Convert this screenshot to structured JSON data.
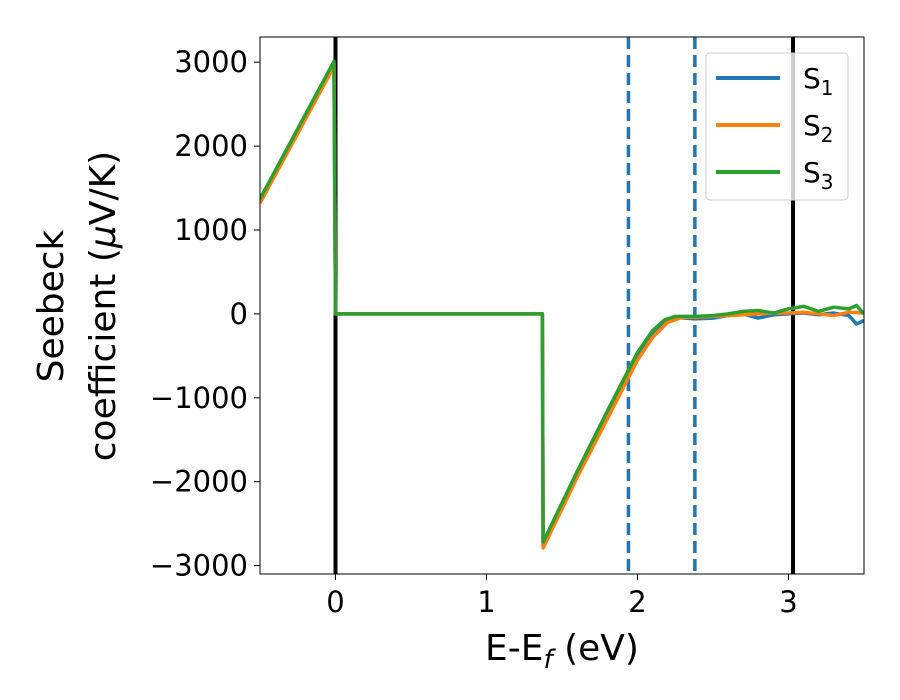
{
  "chart_data": {
    "type": "line",
    "xlabel": "E-E",
    "xlabel_sub": "f",
    "xlabel_unit": " (eV)",
    "ylabel_line1": "Seebeck",
    "ylabel_line2": "coefficient  (",
    "ylabel_mu": "μ",
    "ylabel_unit": "V/K)",
    "xlim": [
      -0.5,
      3.5
    ],
    "ylim": [
      -3100,
      3300
    ],
    "xticks": [
      0,
      1,
      2,
      3
    ],
    "xtick_labels": [
      "0",
      "1",
      "2",
      "3"
    ],
    "yticks": [
      3000,
      2000,
      1000,
      0,
      -1000,
      -2000,
      -3000
    ],
    "ytick_labels": [
      "3000",
      "2000",
      "1000",
      "0",
      "−1000",
      "−2000",
      "−3000"
    ],
    "grid": false,
    "legend_position": "top-right",
    "vertical_lines": [
      {
        "x": 0.0,
        "style": "solid",
        "color": "#000000"
      },
      {
        "x": 3.03,
        "style": "solid",
        "color": "#000000"
      },
      {
        "x": 1.94,
        "style": "dashed",
        "color": "#1f77b4"
      },
      {
        "x": 2.38,
        "style": "dashed",
        "color": "#1f77b4"
      }
    ],
    "series": [
      {
        "name": "S",
        "subscript": "1",
        "color": "#1f77b4",
        "x": [
          -0.5,
          -0.01,
          0.0,
          0.01,
          1.37,
          1.375,
          1.6,
          1.8,
          2.0,
          2.1,
          2.18,
          2.25,
          2.38,
          2.5,
          2.6,
          2.7,
          2.8,
          2.9,
          3.0,
          3.1,
          3.2,
          3.3,
          3.4,
          3.45,
          3.5
        ],
        "y": [
          1350,
          2980,
          0,
          0,
          0,
          -2760,
          -1900,
          -1180,
          -480,
          -220,
          -80,
          -40,
          -60,
          -50,
          -20,
          0,
          -50,
          -10,
          0,
          10,
          -10,
          10,
          -20,
          -120,
          -80
        ]
      },
      {
        "name": "S",
        "subscript": "2",
        "color": "#ff7f0e",
        "x": [
          -0.5,
          -0.01,
          0.0,
          0.01,
          1.37,
          1.375,
          1.6,
          1.8,
          2.0,
          2.1,
          2.2,
          2.3,
          2.38,
          2.5,
          2.6,
          2.7,
          2.8,
          2.9,
          3.0,
          3.1,
          3.2,
          3.3,
          3.4,
          3.5
        ],
        "y": [
          1320,
          2950,
          0,
          0,
          0,
          -2790,
          -1950,
          -1250,
          -550,
          -280,
          -100,
          -40,
          -40,
          -30,
          -20,
          -10,
          0,
          10,
          10,
          20,
          0,
          -20,
          20,
          10
        ]
      },
      {
        "name": "S",
        "subscript": "3",
        "color": "#2ca02c",
        "x": [
          -0.5,
          -0.01,
          0.0,
          0.01,
          1.37,
          1.375,
          1.6,
          1.8,
          2.0,
          2.1,
          2.18,
          2.25,
          2.38,
          2.5,
          2.6,
          2.7,
          2.8,
          2.9,
          3.0,
          3.1,
          3.2,
          3.3,
          3.4,
          3.45,
          3.5
        ],
        "y": [
          1370,
          3010,
          0,
          0,
          0,
          -2720,
          -1880,
          -1160,
          -460,
          -200,
          -70,
          -30,
          -30,
          -20,
          0,
          30,
          40,
          10,
          60,
          90,
          30,
          80,
          60,
          100,
          0
        ]
      }
    ]
  }
}
